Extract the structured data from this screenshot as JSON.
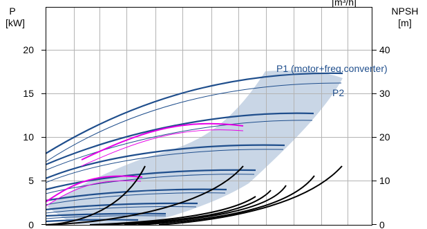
{
  "chart_data": {
    "type": "line",
    "yaxis_left": {
      "label_line1": "P",
      "label_line2": "[kW]",
      "ticks": [
        "0",
        "5",
        "10",
        "15",
        "20"
      ],
      "ylim": [
        0,
        25
      ]
    },
    "yaxis_right": {
      "label_line1": "NPSH",
      "label_line2": "[m]",
      "ticks": [
        "0",
        "10",
        "20",
        "30",
        "40"
      ],
      "ylim": [
        0,
        40
      ]
    },
    "xaxis_label_partial": "[m³/h]",
    "grid": true,
    "annotations": {
      "p1": "P1 (motor+freq.converter)",
      "p2": "P2"
    },
    "colors": {
      "power": "#1f4e8c",
      "fill": "#c9d6e6",
      "highlight": "#e600e6",
      "npsh": "#000000",
      "grid": "#b3b3b3"
    },
    "notes": "Power curves (P1 thick, P2 thin) at several speeds; NPSH curves in black; magenta = highlighted duty curves; shaded = operating range."
  }
}
